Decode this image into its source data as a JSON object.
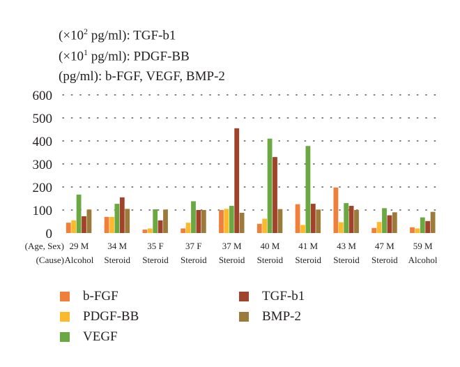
{
  "units": {
    "tgf": {
      "prefix": "(×10",
      "exp": "2",
      "suffix": " pg/ml): TGF-b1"
    },
    "pdgf": {
      "prefix": "(×10",
      "exp": "1",
      "suffix": " pg/ml): PDGF-BB"
    },
    "other": "(pg/ml): b-FGF, VEGF, BMP-2"
  },
  "chart_data": {
    "type": "bar",
    "row_labels": [
      "(Age, Sex)",
      "(Cause)"
    ],
    "categories": [
      {
        "age_sex": "29 M",
        "cause": "Alcohol"
      },
      {
        "age_sex": "34 M",
        "cause": "Steroid"
      },
      {
        "age_sex": "35 F",
        "cause": "Steroid"
      },
      {
        "age_sex": "37 F",
        "cause": "Steroid"
      },
      {
        "age_sex": "37 M",
        "cause": "Steroid"
      },
      {
        "age_sex": "40 M",
        "cause": "Steroid"
      },
      {
        "age_sex": "41 M",
        "cause": "Steroid"
      },
      {
        "age_sex": "43 M",
        "cause": "Steroid"
      },
      {
        "age_sex": "47 M",
        "cause": "Steroid"
      },
      {
        "age_sex": "59 M",
        "cause": "Alcohol"
      }
    ],
    "series": [
      {
        "name": "b-FGF",
        "color": "#f07f3c",
        "values": [
          45,
          70,
          15,
          20,
          100,
          40,
          125,
          198,
          22,
          25
        ]
      },
      {
        "name": "PDGF-BB",
        "color": "#fdb92c",
        "values": [
          55,
          70,
          20,
          45,
          105,
          62,
          35,
          47,
          48,
          20
        ]
      },
      {
        "name": "VEGF",
        "color": "#6aa842",
        "values": [
          167,
          127,
          103,
          138,
          118,
          410,
          378,
          130,
          108,
          68
        ]
      },
      {
        "name": "TGF-b1",
        "color": "#a0432a",
        "values": [
          73,
          155,
          55,
          100,
          455,
          330,
          127,
          118,
          77,
          52
        ]
      },
      {
        "name": "BMP-2",
        "color": "#9b7a3a",
        "values": [
          102,
          105,
          102,
          100,
          88,
          104,
          102,
          100,
          90,
          92
        ]
      }
    ],
    "y_ticks": [
      0,
      100,
      200,
      300,
      400,
      500,
      600
    ],
    "ylim": [
      0,
      600
    ],
    "grid": "dotted horizontal",
    "legend_position": "bottom"
  }
}
